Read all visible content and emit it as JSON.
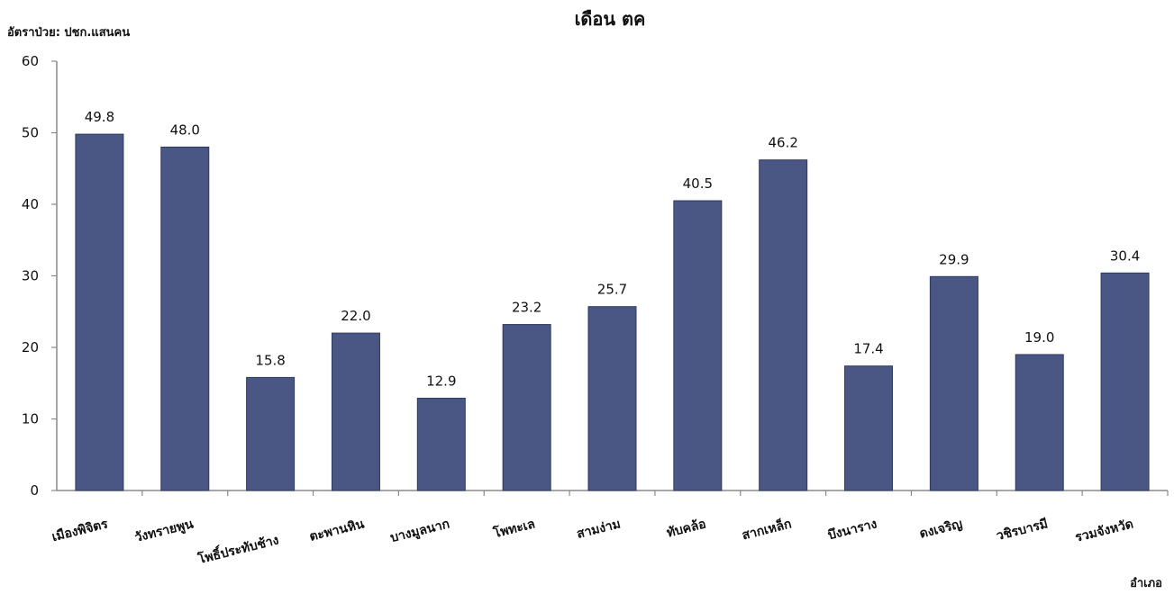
{
  "chart_data": {
    "type": "bar",
    "title": "เดือน ตค",
    "ylabel": "อัตราป่วย: ปชก.แสนคน",
    "xlabel": "อำเภอ",
    "ylim": [
      0,
      60
    ],
    "yticks": [
      "0",
      "10",
      "20",
      "30",
      "40",
      "50",
      "60"
    ],
    "grid": false,
    "categories": [
      "เมืองพิจิตร",
      "วังทรายพูน",
      "โพธิ์ประทับช้าง",
      "ตะพานหิน",
      "บางมูลนาก",
      "โพทะเล",
      "สามง่าม",
      "ทับคล้อ",
      "สากเหล็ก",
      "บึงนาราง",
      "ดงเจริญ",
      "วชิรบารมี",
      "รวมจังหวัด"
    ],
    "values": [
      49.8,
      48.0,
      15.8,
      22.0,
      12.9,
      23.2,
      25.7,
      40.5,
      46.2,
      17.4,
      29.9,
      19.0,
      30.4
    ],
    "data_labels": [
      "49.8",
      "48.0",
      "15.8",
      "22.0",
      "12.9",
      "23.2",
      "25.7",
      "40.5",
      "46.2",
      "17.4",
      "29.9",
      "19.0",
      "30.4"
    ],
    "bar_color": "#4a5784"
  }
}
